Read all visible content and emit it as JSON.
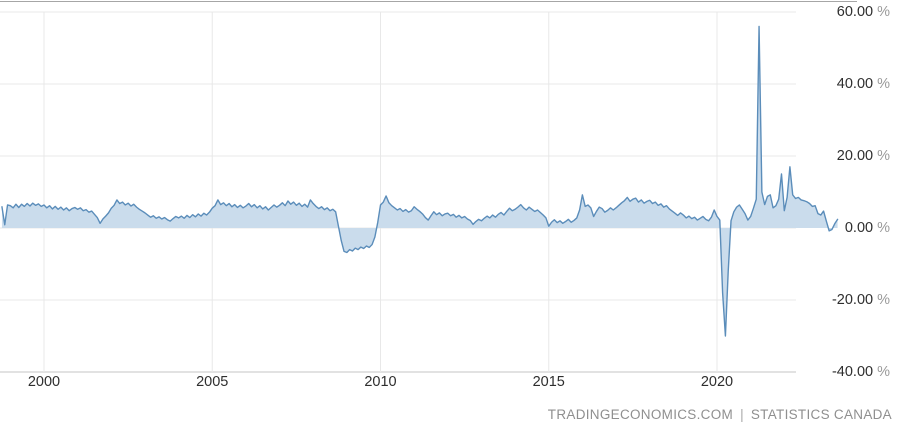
{
  "page": {
    "background": "#ffffff"
  },
  "attribution": {
    "left": "TRADINGECONOMICS.COM",
    "separator": "|",
    "right": "STATISTICS CANADA"
  },
  "chart_data": {
    "type": "area",
    "title": "",
    "unit": "%",
    "grid": true,
    "legend": false,
    "x_axis": {
      "ticks": [
        {
          "label": "2000",
          "year": 2000
        },
        {
          "label": "2005",
          "year": 2005
        },
        {
          "label": "2010",
          "year": 2010
        },
        {
          "label": "2015",
          "year": 2015
        },
        {
          "label": "2020",
          "year": 2020
        }
      ],
      "range_years": [
        1998.7,
        2023.8
      ]
    },
    "y_axis": {
      "side": "right",
      "range": [
        -40,
        60
      ],
      "ticks": [
        {
          "label": "60.00",
          "suffix": "%",
          "value": 60
        },
        {
          "label": "40.00",
          "suffix": "%",
          "value": 40
        },
        {
          "label": "20.00",
          "suffix": "%",
          "value": 20
        },
        {
          "label": "0.00",
          "suffix": "%",
          "value": 0
        },
        {
          "label": "-20.00",
          "suffix": "%",
          "value": -20
        },
        {
          "label": "-40.00",
          "suffix": "%",
          "value": -40
        }
      ]
    },
    "series": [
      {
        "name": "value",
        "start": "1998-10",
        "frequency": "monthly",
        "unit": "%",
        "values": [
          5.9,
          0.9,
          6.4,
          6.2,
          5.6,
          6.6,
          5.7,
          6.6,
          6.0,
          6.8,
          6.1,
          6.9,
          6.3,
          6.7,
          6.0,
          6.4,
          5.6,
          6.2,
          5.3,
          6.0,
          5.2,
          5.8,
          5.0,
          5.6,
          4.8,
          5.4,
          5.7,
          5.2,
          5.6,
          4.8,
          5.1,
          4.4,
          4.7,
          3.8,
          2.9,
          1.3,
          2.5,
          3.3,
          4.2,
          5.5,
          6.3,
          7.8,
          6.8,
          7.2,
          6.4,
          6.9,
          6.1,
          6.6,
          5.8,
          5.2,
          4.7,
          4.2,
          3.6,
          3.0,
          3.4,
          2.7,
          3.1,
          2.5,
          2.9,
          2.3,
          1.9,
          2.6,
          3.2,
          2.8,
          3.3,
          2.7,
          3.5,
          2.9,
          3.7,
          3.1,
          3.9,
          3.3,
          4.1,
          3.6,
          4.4,
          5.5,
          6.2,
          7.8,
          6.5,
          7.0,
          6.2,
          6.8,
          5.9,
          6.5,
          5.7,
          6.3,
          5.6,
          6.1,
          6.8,
          5.9,
          6.5,
          5.6,
          6.2,
          5.3,
          5.9,
          5.0,
          5.7,
          6.4,
          5.8,
          6.3,
          7.0,
          6.2,
          7.5,
          6.6,
          7.2,
          6.3,
          6.9,
          6.0,
          6.6,
          5.8,
          7.8,
          6.8,
          6.0,
          5.4,
          5.9,
          5.1,
          5.6,
          4.8,
          5.2,
          4.5,
          0.5,
          -3.5,
          -6.5,
          -6.8,
          -6.0,
          -6.4,
          -5.6,
          -6.0,
          -5.3,
          -5.7,
          -5.0,
          -5.4,
          -4.6,
          -2.5,
          1.5,
          6.4,
          7.2,
          8.9,
          7.0,
          6.2,
          5.6,
          5.0,
          5.4,
          4.6,
          5.1,
          4.4,
          4.8,
          5.9,
          5.2,
          4.6,
          3.9,
          2.9,
          2.2,
          3.4,
          4.5,
          3.7,
          4.2,
          3.4,
          3.9,
          4.1,
          3.4,
          3.8,
          3.0,
          3.5,
          2.8,
          3.2,
          2.5,
          2.1,
          1.0,
          1.8,
          2.4,
          2.0,
          2.7,
          3.3,
          2.8,
          3.6,
          3.0,
          3.8,
          4.3,
          3.6,
          4.6,
          5.5,
          4.8,
          5.2,
          5.8,
          6.5,
          5.6,
          5.0,
          5.8,
          5.2,
          4.6,
          5.0,
          4.3,
          3.6,
          2.8,
          0.5,
          1.6,
          2.3,
          1.5,
          2.0,
          1.3,
          1.8,
          2.4,
          1.6,
          2.1,
          2.8,
          5.0,
          9.2,
          6.0,
          6.4,
          5.6,
          3.2,
          4.6,
          5.8,
          5.4,
          4.4,
          4.9,
          5.6,
          5.0,
          5.6,
          6.3,
          7.0,
          7.6,
          8.5,
          7.4,
          8.0,
          8.3,
          7.2,
          7.8,
          6.9,
          7.4,
          7.7,
          6.8,
          7.2,
          6.3,
          6.7,
          5.8,
          6.2,
          5.3,
          4.7,
          4.1,
          3.5,
          4.2,
          3.6,
          2.8,
          3.3,
          2.6,
          3.0,
          2.2,
          2.7,
          3.2,
          2.4,
          2.0,
          3.0,
          5.0,
          3.2,
          2.2,
          -18.0,
          -30.0,
          -12.0,
          2.0,
          4.5,
          5.8,
          6.4,
          5.2,
          4.0,
          2.2,
          3.2,
          5.5,
          8.0,
          56.0,
          10.0,
          6.5,
          8.8,
          9.2,
          5.6,
          6.2,
          8.0,
          15.0,
          4.8,
          8.5,
          17.0,
          9.2,
          8.2,
          8.5,
          7.8,
          7.6,
          7.3,
          6.8,
          6.0,
          6.2,
          4.0,
          3.6,
          4.7,
          1.9,
          -0.8,
          -0.4,
          1.2,
          2.4
        ]
      }
    ],
    "colors": {
      "line": "#5b8dba",
      "fill": "#cadcec",
      "grid": "#e8e8e8",
      "axis_line": "#c4c4c4",
      "top_border": "#a6a6a6",
      "tick_text": "#2e2e2e",
      "percent_sign": "#9a9a9a",
      "attribution_text": "#8f8f8f"
    }
  }
}
